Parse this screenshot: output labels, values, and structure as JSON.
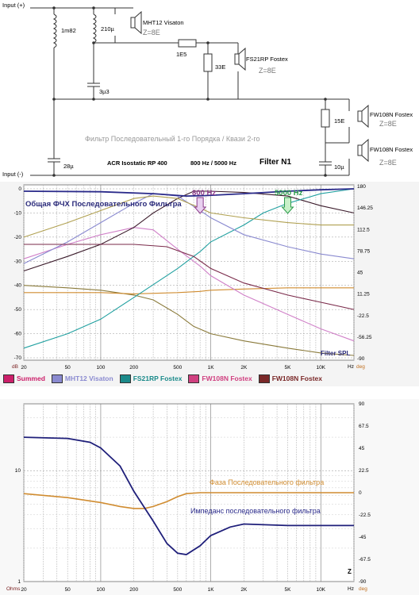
{
  "schematic": {
    "input_pos": "Input (+)",
    "input_neg": "Input (-)",
    "components": {
      "l1": "1m82",
      "l2": "210µ",
      "c1": "3µ3",
      "c2": "28µ",
      "r1": "1E5",
      "r2": "33E",
      "r3": "15E",
      "c3": "10µ"
    },
    "speakers": {
      "s1_name": "MHT12 Visaton",
      "s1_z": "Z=8E",
      "s2_name": "FS21RP Fostex",
      "s2_z": "Z=8E",
      "s3_name": "FW108N Fostex",
      "s3_z": "Z=8E",
      "s4_name": "FW108N Fostex",
      "s4_z": "Z=8E"
    },
    "title": "Фильтр Последовательный 1-го Порядка / Квази 2-го",
    "acr": "ACR Isostatic RP 400",
    "freqs": "800 Hz / 5000 Hz",
    "filter_name": "Filter N1"
  },
  "spl_chart": {
    "heading": "Общая ФЧХ Последовательного Фильтра",
    "marker_800": "800 Hz",
    "marker_5000": "5000 Hz",
    "corner_label": "Filter SPL",
    "y_unit": "dB",
    "x_unit": "Hz",
    "phase_unit": "deg",
    "y_ticks": [
      "0",
      "-10",
      "-20",
      "-30",
      "-40",
      "-50",
      "-60",
      "-70"
    ],
    "phase_ticks": [
      "180",
      "146.25",
      "112.5",
      "78.75",
      "45",
      "11.25",
      "-22.5",
      "-56.25",
      "-90"
    ],
    "x_ticks": [
      "20",
      "50",
      "100",
      "200",
      "500",
      "1K",
      "2K",
      "5K",
      "10K"
    ],
    "legend": [
      {
        "label": "Summed",
        "color": "#cc1f6a"
      },
      {
        "label": "MHT12 Visaton",
        "color": "#8a8ad0"
      },
      {
        "label": "FS21RP Fostex",
        "color": "#1b8a8a"
      },
      {
        "label": "FW108N Fostex",
        "color": "#d04080"
      },
      {
        "label": "FW108N Fostex",
        "color": "#7a2828"
      }
    ],
    "colors": {
      "summed": "#2a2a8a",
      "woofer1": "#3a1a2a",
      "woofer2": "#d080c8",
      "mid": "#20a0a0",
      "tweeter": "#8a8ad0",
      "phase_a": "#8a7a3a",
      "phase_b": "#d08c30"
    }
  },
  "imp_chart": {
    "phase_label": "Фаза Последовательного фильтра",
    "imp_label": "Импеданс последовательного фильтра",
    "corner_label": "Z",
    "y_unit": "Ohms",
    "x_unit": "Hz",
    "phase_unit": "deg",
    "y_ticks": [
      "10",
      "1"
    ],
    "phase_ticks": [
      "90",
      "67.5",
      "45",
      "22.5",
      "0",
      "-22.5",
      "-45",
      "-67.5",
      "-90"
    ],
    "x_ticks": [
      "20",
      "50",
      "100",
      "200",
      "500",
      "1K",
      "2K",
      "5K",
      "10K"
    ],
    "colors": {
      "impedance": "#1f1f7a",
      "phase": "#d08c30"
    }
  }
}
